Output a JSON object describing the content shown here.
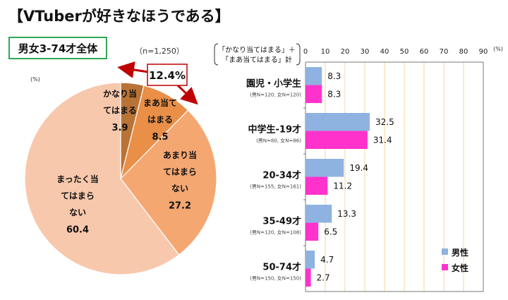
{
  "title": "【VTuberが好きなほうである】",
  "chart_data": [
    {
      "type": "pie",
      "subtitle": "男女3-74才全体",
      "n_label": "（n=1,250）",
      "unit_label": "(%)",
      "callout": "12.4%",
      "slices": [
        {
          "lines": [
            "かなり当",
            "てはまる"
          ],
          "value": 3.9,
          "value_label": "3.9",
          "color": "#b87336"
        },
        {
          "lines": [
            "まあ当て",
            "はまる"
          ],
          "value": 8.5,
          "value_label": "8.5",
          "color": "#e98f48"
        },
        {
          "lines": [
            "あまり当",
            "てはまら",
            "ない"
          ],
          "value": 27.2,
          "value_label": "27.2",
          "color": "#f5a772"
        },
        {
          "lines": [
            "まったく当",
            "てはまら",
            "ない"
          ],
          "value": 60.4,
          "value_label": "60.4",
          "color": "#f8c8ac"
        }
      ]
    },
    {
      "type": "bar",
      "orientation": "horizontal",
      "header_lines": [
        "「かなり当てはまる」＋",
        "「まあ当てはまる」計"
      ],
      "unit_label": "(%)",
      "xlim": [
        0,
        90
      ],
      "ticks": [
        "0",
        "10",
        "20",
        "30",
        "40",
        "50",
        "60",
        "70",
        "80",
        "90"
      ],
      "grid": true,
      "legend_position": "bottom-right",
      "categories": [
        {
          "label": "園児・小学生",
          "sub": "(男N=120, 女N=120)"
        },
        {
          "label": "中学生-19才",
          "sub": "(男N=80, 女N=86)"
        },
        {
          "label": "20-34才",
          "sub": "(男N=155, 女N=161)"
        },
        {
          "label": "35-49才",
          "sub": "(男N=120, 女N=108)"
        },
        {
          "label": "50-74才",
          "sub": "(男N=150, 女N=150)"
        }
      ],
      "series": [
        {
          "name": "男性",
          "color": "#8fb3e0",
          "values": [
            8.3,
            32.5,
            19.4,
            13.3,
            4.7
          ],
          "labels": [
            "8.3",
            "32.5",
            "19.4",
            "13.3",
            "4.7"
          ]
        },
        {
          "name": "女性",
          "color": "#ff33cc",
          "values": [
            8.3,
            31.4,
            11.2,
            6.5,
            2.7
          ],
          "labels": [
            "8.3",
            "31.4",
            "11.2",
            "6.5",
            "2.7"
          ]
        }
      ]
    }
  ]
}
